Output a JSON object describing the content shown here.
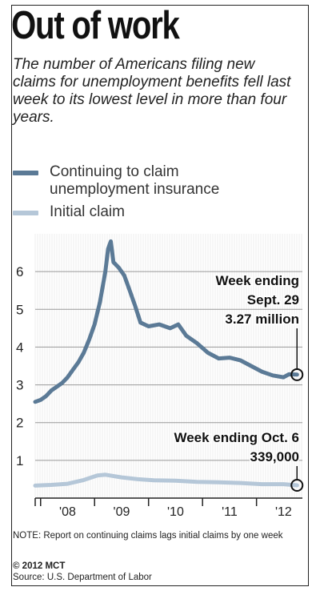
{
  "graphic": {
    "title": "Out of work",
    "subtitle": "The number of Americans filing new claims for unemployment benefits fell last week to its lowest level in more than four years.",
    "legend": [
      {
        "label_line1": "Continuing to claim",
        "label_line2": "unemployment insurance",
        "color": "#5b7a96"
      },
      {
        "label_line1": "Initial claim",
        "label_line2": "",
        "color": "#b5c7d8"
      }
    ],
    "note": "NOTE: Report on continuing claims lags initial claims by one week",
    "copyright": "© 2012 MCT",
    "source": "Source: U.S. Department of Labor"
  },
  "chart_data": {
    "type": "line",
    "ylabel": "",
    "xlabel": "",
    "ylim": [
      0,
      7
    ],
    "yticks": [
      "1",
      "2",
      "3",
      "4",
      "5",
      "6"
    ],
    "xticks": [
      "'08",
      "'09",
      "'10",
      "'11",
      "'12"
    ],
    "xlim": [
      2007.9,
      2012.85
    ],
    "grid": true,
    "series": [
      {
        "name": "Continuing to claim unemployment insurance",
        "color": "#5b7a96",
        "x": [
          2007.9,
          2008.0,
          2008.1,
          2008.2,
          2008.3,
          2008.4,
          2008.5,
          2008.6,
          2008.7,
          2008.8,
          2008.9,
          2009.0,
          2009.1,
          2009.2,
          2009.25,
          2009.3,
          2009.35,
          2009.45,
          2009.55,
          2009.65,
          2009.75,
          2009.85,
          2010.0,
          2010.2,
          2010.4,
          2010.55,
          2010.7,
          2010.9,
          2011.1,
          2011.3,
          2011.5,
          2011.7,
          2011.9,
          2012.1,
          2012.3,
          2012.5,
          2012.6,
          2012.75
        ],
        "y": [
          2.55,
          2.6,
          2.7,
          2.85,
          2.95,
          3.05,
          3.2,
          3.4,
          3.6,
          3.85,
          4.2,
          4.6,
          5.2,
          6.0,
          6.6,
          6.8,
          6.25,
          6.1,
          5.9,
          5.5,
          5.1,
          4.65,
          4.55,
          4.6,
          4.5,
          4.6,
          4.3,
          4.1,
          3.85,
          3.7,
          3.72,
          3.65,
          3.5,
          3.35,
          3.25,
          3.2,
          3.28,
          3.27
        ]
      },
      {
        "name": "Initial claim",
        "color": "#b5c7d8",
        "x": [
          2007.9,
          2008.2,
          2008.5,
          2008.8,
          2009.05,
          2009.2,
          2009.5,
          2009.8,
          2010.1,
          2010.5,
          2010.9,
          2011.3,
          2011.7,
          2012.1,
          2012.5,
          2012.75
        ],
        "y": [
          0.33,
          0.35,
          0.38,
          0.48,
          0.6,
          0.62,
          0.55,
          0.5,
          0.47,
          0.46,
          0.43,
          0.42,
          0.4,
          0.37,
          0.37,
          0.339
        ]
      }
    ],
    "annotations": [
      {
        "line1": "Week ending",
        "line2": "Sept. 29",
        "line3": "3.27 million",
        "x": 2012.75,
        "y": 3.27
      },
      {
        "line1": "Week ending Oct. 6",
        "line2": "339,000",
        "x": 2012.75,
        "y": 0.339
      }
    ]
  }
}
